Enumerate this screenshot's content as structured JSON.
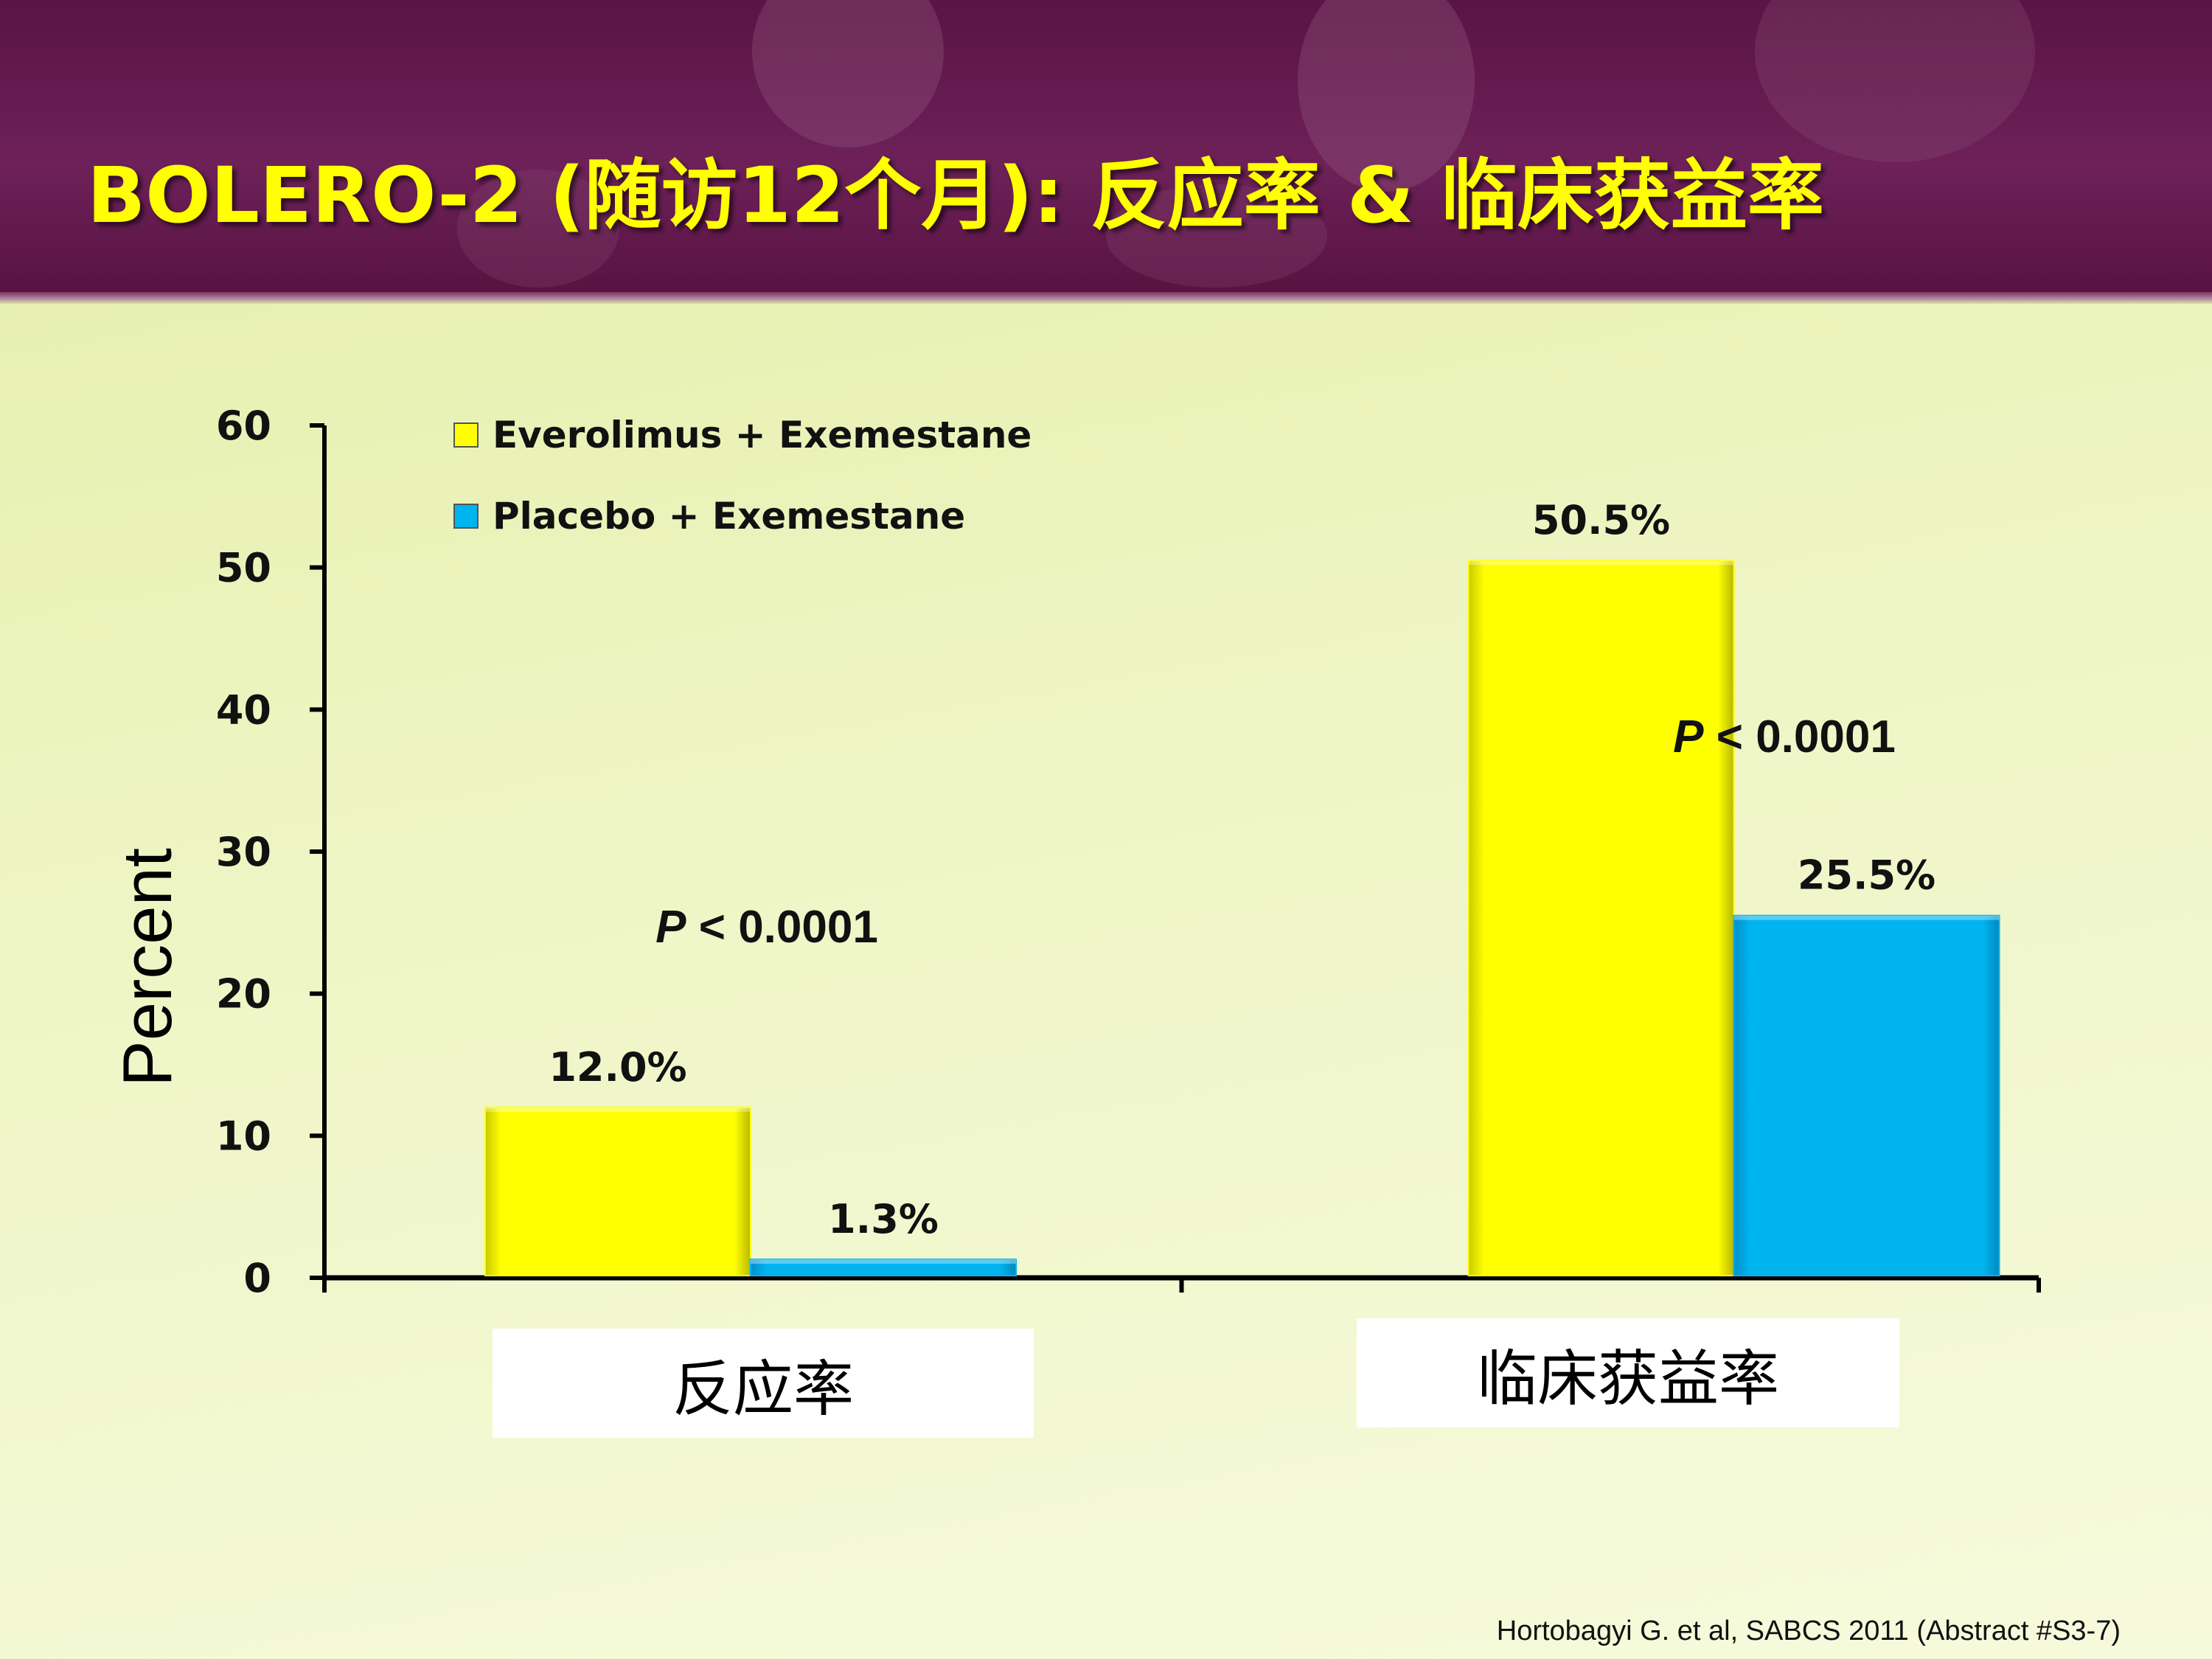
{
  "slide": {
    "title": "BOLERO-2 (随访12个月): 反应率 & 临床获益率",
    "citation": "Hortobagyi G. et al, SABCS  2011 (Abstract #S3-7)"
  },
  "colors": {
    "everolimus": "#ffff00",
    "placebo": "#00b4f0",
    "header": "#6d2158",
    "title": "#ffff00"
  },
  "chart_data": {
    "type": "bar",
    "categories": [
      "反应率",
      "临床获益率"
    ],
    "series": [
      {
        "name": "Everolimus + Exemestane",
        "values": [
          12.0,
          50.5
        ],
        "labels": [
          "12.0%",
          "50.5%"
        ]
      },
      {
        "name": "Placebo + Exemestane",
        "values": [
          1.3,
          25.5
        ],
        "labels": [
          "1.3%",
          "25.5%"
        ]
      }
    ],
    "p_values": [
      "P < 0.0001",
      "P < 0.0001"
    ],
    "ylabel": "Percent",
    "xlabel": "",
    "ylim": [
      0,
      60
    ],
    "yticks": [
      0,
      10,
      20,
      30,
      40,
      50,
      60
    ],
    "legend_position": "top-left",
    "grid": false
  }
}
